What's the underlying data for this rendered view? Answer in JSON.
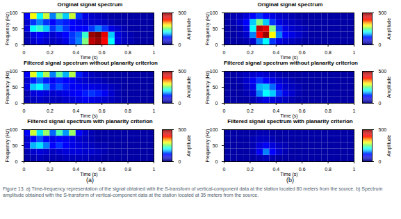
{
  "chart_data": [
    {
      "type": "heatmap",
      "title": "Original signal spectrum",
      "x_label": "Time (s)",
      "y_label": "Frequency (Hz)",
      "xlim": [
        0,
        1
      ],
      "ylim": [
        0,
        100
      ],
      "xticks": [
        0,
        0.2,
        0.4,
        0.6,
        0.8,
        1
      ],
      "yticks": [
        0,
        50,
        100
      ],
      "time_bins": [
        0,
        0.05,
        0.1,
        0.15,
        0.2,
        0.25,
        0.3,
        0.35,
        0.4,
        0.45,
        0.5,
        0.55,
        0.6,
        0.65,
        0.7,
        0.75,
        0.8,
        0.85,
        0.9,
        0.95,
        1
      ],
      "frequency_bins": [
        0,
        20,
        40,
        60,
        80,
        100
      ],
      "cells": [
        [
          40,
          60,
          80,
          60,
          50,
          60,
          80,
          120,
          150,
          250,
          450,
          480,
          400,
          200,
          80,
          50,
          40,
          30,
          30,
          30
        ],
        [
          40,
          80,
          100,
          80,
          60,
          80,
          100,
          120,
          140,
          220,
          480,
          500,
          420,
          180,
          80,
          50,
          40,
          30,
          30,
          30
        ],
        [
          80,
          200,
          220,
          180,
          120,
          150,
          120,
          100,
          100,
          100,
          120,
          150,
          120,
          80,
          60,
          40,
          30,
          30,
          30,
          30
        ],
        [
          60,
          120,
          150,
          120,
          100,
          120,
          110,
          100,
          80,
          70,
          60,
          60,
          50,
          40,
          30,
          30,
          30,
          30,
          30,
          30
        ],
        [
          100,
          300,
          200,
          280,
          150,
          250,
          180,
          280,
          120,
          80,
          60,
          50,
          40,
          30,
          30,
          30,
          30,
          30,
          30,
          30
        ]
      ],
      "colorbar": {
        "label": "Amplitude",
        "range": [
          0,
          500
        ],
        "ticks": [
          0,
          500
        ]
      }
    },
    {
      "type": "heatmap",
      "title": "Filtered signal spectrum without planarity criterion",
      "x_label": "Time (s)",
      "y_label": "Frequency (Hz)",
      "xlim": [
        0,
        1
      ],
      "ylim": [
        0,
        100
      ],
      "xticks": [
        0,
        0.2,
        0.4,
        0.6,
        0.8,
        1
      ],
      "yticks": [
        0,
        50,
        100
      ],
      "time_bins": [
        0,
        0.05,
        0.1,
        0.15,
        0.2,
        0.25,
        0.3,
        0.35,
        0.4,
        0.45,
        0.5,
        0.55,
        0.6,
        0.65,
        0.7,
        0.75,
        0.8,
        0.85,
        0.9,
        0.95,
        1
      ],
      "frequency_bins": [
        0,
        20,
        40,
        60,
        80,
        100
      ],
      "cells": [
        [
          40,
          50,
          60,
          50,
          50,
          50,
          60,
          70,
          80,
          90,
          80,
          70,
          60,
          50,
          40,
          30,
          30,
          30,
          30,
          30
        ],
        [
          40,
          70,
          80,
          70,
          60,
          70,
          80,
          90,
          100,
          110,
          120,
          110,
          90,
          60,
          40,
          30,
          30,
          30,
          30,
          30
        ],
        [
          80,
          180,
          200,
          160,
          110,
          130,
          110,
          90,
          90,
          80,
          80,
          70,
          60,
          50,
          40,
          30,
          30,
          30,
          30,
          30
        ],
        [
          60,
          110,
          140,
          110,
          90,
          110,
          100,
          90,
          70,
          60,
          50,
          50,
          40,
          30,
          30,
          30,
          30,
          30,
          30,
          30
        ],
        [
          100,
          290,
          200,
          270,
          150,
          240,
          170,
          270,
          110,
          70,
          50,
          40,
          30,
          30,
          30,
          30,
          30,
          30,
          30,
          30
        ]
      ],
      "colorbar": {
        "label": "Amplitude",
        "range": [
          0,
          500
        ],
        "ticks": [
          0,
          500
        ]
      }
    },
    {
      "type": "heatmap",
      "title": "Filtered signal spectrum with planarity criterion",
      "x_label": "Time (s)",
      "y_label": "Frequency (Hz)",
      "xlim": [
        0,
        1
      ],
      "ylim": [
        0,
        100
      ],
      "xticks": [
        0,
        0.2,
        0.4,
        0.6,
        0.8,
        1
      ],
      "yticks": [
        0,
        50,
        100
      ],
      "time_bins": [
        0,
        0.05,
        0.1,
        0.15,
        0.2,
        0.25,
        0.3,
        0.35,
        0.4,
        0.45,
        0.5,
        0.55,
        0.6,
        0.65,
        0.7,
        0.75,
        0.8,
        0.85,
        0.9,
        0.95,
        1
      ],
      "frequency_bins": [
        0,
        20,
        40,
        60,
        80,
        100
      ],
      "cells": [
        [
          30,
          40,
          50,
          40,
          40,
          40,
          50,
          50,
          50,
          50,
          40,
          40,
          30,
          30,
          30,
          30,
          30,
          30,
          30,
          30
        ],
        [
          40,
          60,
          70,
          60,
          50,
          60,
          70,
          70,
          70,
          60,
          60,
          50,
          40,
          30,
          30,
          30,
          30,
          30,
          30,
          30
        ],
        [
          70,
          170,
          190,
          150,
          100,
          120,
          100,
          80,
          70,
          60,
          50,
          40,
          40,
          30,
          30,
          30,
          30,
          30,
          30,
          30
        ],
        [
          60,
          100,
          130,
          100,
          80,
          100,
          90,
          80,
          60,
          50,
          40,
          30,
          30,
          30,
          30,
          30,
          30,
          30,
          30,
          30
        ],
        [
          100,
          280,
          190,
          260,
          140,
          230,
          160,
          260,
          100,
          60,
          40,
          30,
          30,
          30,
          30,
          30,
          30,
          30,
          30,
          30
        ]
      ],
      "colorbar": {
        "label": "Amplitude",
        "range": [
          0,
          500
        ],
        "ticks": [
          0,
          500
        ]
      }
    },
    {
      "type": "heatmap",
      "title": "Original signal spectrum",
      "x_label": "Time (s)",
      "y_label": "Frequency (Hz)",
      "xlim": [
        0,
        1
      ],
      "ylim": [
        0,
        100
      ],
      "xticks": [
        0,
        0.2,
        0.4,
        0.6,
        0.8,
        1
      ],
      "yticks": [
        0,
        50,
        100
      ],
      "time_bins": [
        0,
        0.05,
        0.1,
        0.15,
        0.2,
        0.25,
        0.3,
        0.35,
        0.4,
        0.45,
        0.5,
        0.55,
        0.6,
        0.65,
        0.7,
        0.75,
        0.8,
        0.85,
        0.9,
        0.95,
        1
      ],
      "frequency_bins": [
        0,
        20,
        40,
        60,
        80,
        100
      ],
      "cells": [
        [
          30,
          30,
          30,
          40,
          60,
          150,
          200,
          120,
          80,
          60,
          50,
          40,
          30,
          30,
          30,
          30,
          30,
          30,
          30,
          30
        ],
        [
          30,
          30,
          40,
          60,
          150,
          400,
          480,
          300,
          150,
          100,
          80,
          60,
          40,
          30,
          30,
          30,
          30,
          30,
          30,
          30
        ],
        [
          30,
          30,
          40,
          80,
          200,
          450,
          420,
          250,
          120,
          80,
          60,
          50,
          40,
          30,
          30,
          30,
          30,
          30,
          30,
          30
        ],
        [
          30,
          40,
          60,
          100,
          180,
          250,
          180,
          120,
          80,
          60,
          50,
          40,
          30,
          30,
          30,
          30,
          30,
          30,
          30,
          30
        ],
        [
          30,
          40,
          50,
          70,
          100,
          120,
          100,
          80,
          60,
          50,
          40,
          30,
          30,
          30,
          30,
          30,
          30,
          30,
          30,
          30
        ]
      ],
      "colorbar": {
        "label": "Amplitude",
        "range": [
          0,
          500
        ],
        "ticks": [
          0,
          500
        ]
      }
    },
    {
      "type": "heatmap",
      "title": "Filtered signal spectrum without planarity criterion",
      "x_label": "Time (s)",
      "y_label": "Frequency (Hz)",
      "xlim": [
        0,
        1
      ],
      "ylim": [
        0,
        100
      ],
      "xticks": [
        0,
        0.2,
        0.4,
        0.6,
        0.8,
        1
      ],
      "yticks": [
        0,
        50,
        100
      ],
      "time_bins": [
        0,
        0.05,
        0.1,
        0.15,
        0.2,
        0.25,
        0.3,
        0.35,
        0.4,
        0.45,
        0.5,
        0.55,
        0.6,
        0.65,
        0.7,
        0.75,
        0.8,
        0.85,
        0.9,
        0.95,
        1
      ],
      "frequency_bins": [
        0,
        20,
        40,
        60,
        80,
        100
      ],
      "cells": [
        [
          30,
          30,
          30,
          30,
          40,
          60,
          80,
          70,
          60,
          50,
          40,
          30,
          30,
          30,
          30,
          30,
          30,
          30,
          30,
          30
        ],
        [
          30,
          30,
          30,
          40,
          60,
          150,
          200,
          180,
          120,
          80,
          60,
          40,
          30,
          30,
          30,
          30,
          30,
          30,
          30,
          30
        ],
        [
          30,
          30,
          30,
          50,
          80,
          170,
          180,
          140,
          90,
          60,
          50,
          40,
          30,
          30,
          30,
          30,
          30,
          30,
          30,
          30
        ],
        [
          30,
          30,
          40,
          60,
          90,
          120,
          100,
          80,
          60,
          50,
          40,
          30,
          30,
          30,
          30,
          30,
          30,
          30,
          30,
          30
        ],
        [
          30,
          30,
          40,
          50,
          60,
          70,
          60,
          50,
          40,
          30,
          30,
          30,
          30,
          30,
          30,
          30,
          30,
          30,
          30,
          30
        ]
      ],
      "colorbar": {
        "label": "Amplitude",
        "range": [
          0,
          500
        ],
        "ticks": [
          0,
          500
        ]
      }
    },
    {
      "type": "heatmap",
      "title": "Filtered signal spectrum with planarity criterion",
      "x_label": "Time (s)",
      "y_label": "Frequency (Hz)",
      "xlim": [
        0,
        1
      ],
      "ylim": [
        0,
        100
      ],
      "xticks": [
        0,
        0.2,
        0.4,
        0.6,
        0.8,
        1
      ],
      "yticks": [
        0,
        50,
        100
      ],
      "time_bins": [
        0,
        0.05,
        0.1,
        0.15,
        0.2,
        0.25,
        0.3,
        0.35,
        0.4,
        0.45,
        0.5,
        0.55,
        0.6,
        0.65,
        0.7,
        0.75,
        0.8,
        0.85,
        0.9,
        0.95,
        1
      ],
      "frequency_bins": [
        0,
        20,
        40,
        60,
        80,
        100
      ],
      "cells": [
        [
          30,
          30,
          30,
          30,
          30,
          40,
          50,
          40,
          30,
          30,
          30,
          30,
          30,
          30,
          30,
          30,
          30,
          30,
          30,
          30
        ],
        [
          30,
          30,
          30,
          30,
          40,
          90,
          150,
          100,
          60,
          40,
          30,
          30,
          30,
          30,
          30,
          30,
          30,
          30,
          30,
          30
        ],
        [
          30,
          30,
          30,
          30,
          40,
          70,
          90,
          70,
          50,
          40,
          30,
          30,
          30,
          30,
          30,
          30,
          30,
          30,
          30,
          30
        ],
        [
          30,
          30,
          30,
          30,
          40,
          50,
          50,
          40,
          30,
          30,
          30,
          30,
          30,
          30,
          30,
          30,
          30,
          30,
          30,
          30
        ],
        [
          30,
          30,
          30,
          30,
          30,
          40,
          40,
          30,
          30,
          30,
          30,
          30,
          30,
          30,
          30,
          30,
          30,
          30,
          30,
          30
        ]
      ],
      "colorbar": {
        "label": "Amplitude",
        "range": [
          0,
          500
        ],
        "ticks": [
          0,
          500
        ]
      }
    }
  ],
  "panel_labels": [
    "(a)",
    "(b)"
  ],
  "caption": "Figure 13. a) Time-frequency representation of the signal obtained with the S-transform of vertical-component data at the station located 80 meters from the source. b) Spectrum amplitude obtained with the S-transform of vertical-component data at the station located at 35 meters from the source."
}
